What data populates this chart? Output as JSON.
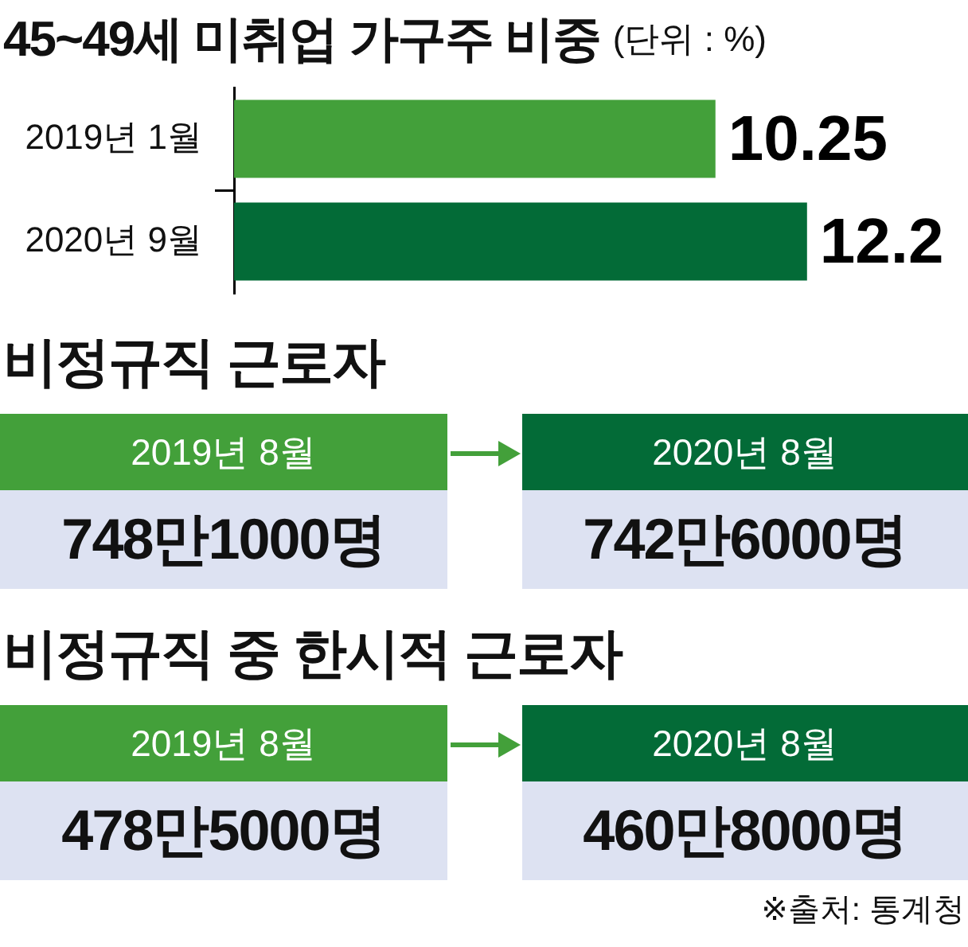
{
  "chart_data": [
    {
      "type": "bar",
      "title": "45~49세 미취업 가구주 비중",
      "subtitle": "(단위 : %)",
      "orientation": "horizontal",
      "categories": [
        "2019년 1월",
        "2020년 9월"
      ],
      "values": [
        10.25,
        12.2
      ],
      "colors": [
        "#43a03a",
        "#036b37"
      ],
      "data_labels": true,
      "tick_labels": "y"
    },
    {
      "type": "other",
      "title": "비정규직 근로자",
      "categories": [
        "2019년 8월",
        "2020년 8월"
      ],
      "colors": [
        "#43a03a",
        "#036b37"
      ],
      "annotations": [
        "748만1000명",
        "742만6000명"
      ]
    },
    {
      "type": "other",
      "title": "비정규직 중 한시적 근로자",
      "categories": [
        "2019년 8월",
        "2020년 8월"
      ],
      "colors": [
        "#43a03a",
        "#036b37"
      ],
      "annotations": [
        "478만5000명",
        "460만8000명",
        "※출처: 통계청"
      ]
    }
  ]
}
